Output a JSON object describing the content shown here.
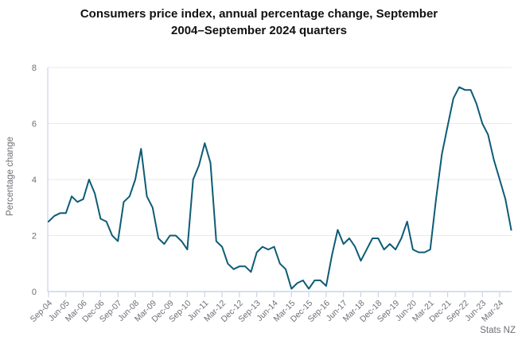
{
  "chart_data": {
    "type": "line",
    "title": "Consumers price index, annual percentage change, September 2004–September 2024 quarters",
    "title_lines": [
      "Consumers price index, annual percentage change, September",
      "2004–September 2024 quarters"
    ],
    "ylabel": "Percentage change",
    "xlabel": "",
    "attribution": "Stats NZ",
    "ylim": [
      0,
      8
    ],
    "yticks": [
      0,
      2,
      4,
      6,
      8
    ],
    "grid": "horizontal",
    "legend": "none",
    "xtick_every": 3,
    "xtick_labels": [
      "Sep-04",
      "Jun-05",
      "Mar-06",
      "Dec-06",
      "Sep-07",
      "Jun-08",
      "Mar-09",
      "Dec-09",
      "Sep-10",
      "Jun-11",
      "Mar-12",
      "Dec-12",
      "Sep-13",
      "Jun-14",
      "Mar-15",
      "Dec-15",
      "Sep-16",
      "Jun-17",
      "Mar-18",
      "Dec-18",
      "Sep-19",
      "Jun-20",
      "Mar-21",
      "Dec-21",
      "Sep-22",
      "Jun-23",
      "Mar-24"
    ],
    "x": [
      "Sep-04",
      "Dec-04",
      "Mar-05",
      "Jun-05",
      "Sep-05",
      "Dec-05",
      "Mar-06",
      "Jun-06",
      "Sep-06",
      "Dec-06",
      "Mar-07",
      "Jun-07",
      "Sep-07",
      "Dec-07",
      "Mar-08",
      "Jun-08",
      "Sep-08",
      "Dec-08",
      "Mar-09",
      "Jun-09",
      "Sep-09",
      "Dec-09",
      "Mar-10",
      "Jun-10",
      "Sep-10",
      "Dec-10",
      "Mar-11",
      "Jun-11",
      "Sep-11",
      "Dec-11",
      "Mar-12",
      "Jun-12",
      "Sep-12",
      "Dec-12",
      "Mar-13",
      "Jun-13",
      "Sep-13",
      "Dec-13",
      "Mar-14",
      "Jun-14",
      "Sep-14",
      "Dec-14",
      "Mar-15",
      "Jun-15",
      "Sep-15",
      "Dec-15",
      "Mar-16",
      "Jun-16",
      "Sep-16",
      "Dec-16",
      "Mar-17",
      "Jun-17",
      "Sep-17",
      "Dec-17",
      "Mar-18",
      "Jun-18",
      "Sep-18",
      "Dec-18",
      "Mar-19",
      "Jun-19",
      "Sep-19",
      "Dec-19",
      "Mar-20",
      "Jun-20",
      "Sep-20",
      "Dec-20",
      "Mar-21",
      "Jun-21",
      "Sep-21",
      "Dec-21",
      "Mar-22",
      "Jun-22",
      "Sep-22",
      "Dec-22",
      "Mar-23",
      "Jun-23",
      "Sep-23",
      "Dec-23",
      "Mar-24",
      "Jun-24",
      "Sep-24"
    ],
    "series": [
      {
        "name": "CPI annual percentage change",
        "values": [
          2.5,
          2.7,
          2.8,
          2.8,
          3.4,
          3.2,
          3.3,
          4.0,
          3.5,
          2.6,
          2.5,
          2.0,
          1.8,
          3.2,
          3.4,
          4.0,
          5.1,
          3.4,
          3.0,
          1.9,
          1.7,
          2.0,
          2.0,
          1.8,
          1.5,
          4.0,
          4.5,
          5.3,
          4.6,
          1.8,
          1.6,
          1.0,
          0.8,
          0.9,
          0.9,
          0.7,
          1.4,
          1.6,
          1.5,
          1.6,
          1.0,
          0.8,
          0.1,
          0.3,
          0.4,
          0.1,
          0.4,
          0.4,
          0.2,
          1.3,
          2.2,
          1.7,
          1.9,
          1.6,
          1.1,
          1.5,
          1.9,
          1.9,
          1.5,
          1.7,
          1.5,
          1.9,
          2.5,
          1.5,
          1.4,
          1.4,
          1.5,
          3.3,
          4.9,
          5.9,
          6.9,
          7.3,
          7.2,
          7.2,
          6.7,
          6.0,
          5.6,
          4.7,
          4.0,
          3.3,
          2.2
        ]
      }
    ],
    "colors": {
      "line": "#0d5c75",
      "grid": "#e9e9ec",
      "axis": "#c9d3e8",
      "tick_label": "#6e6e76",
      "title": "#111111"
    }
  }
}
